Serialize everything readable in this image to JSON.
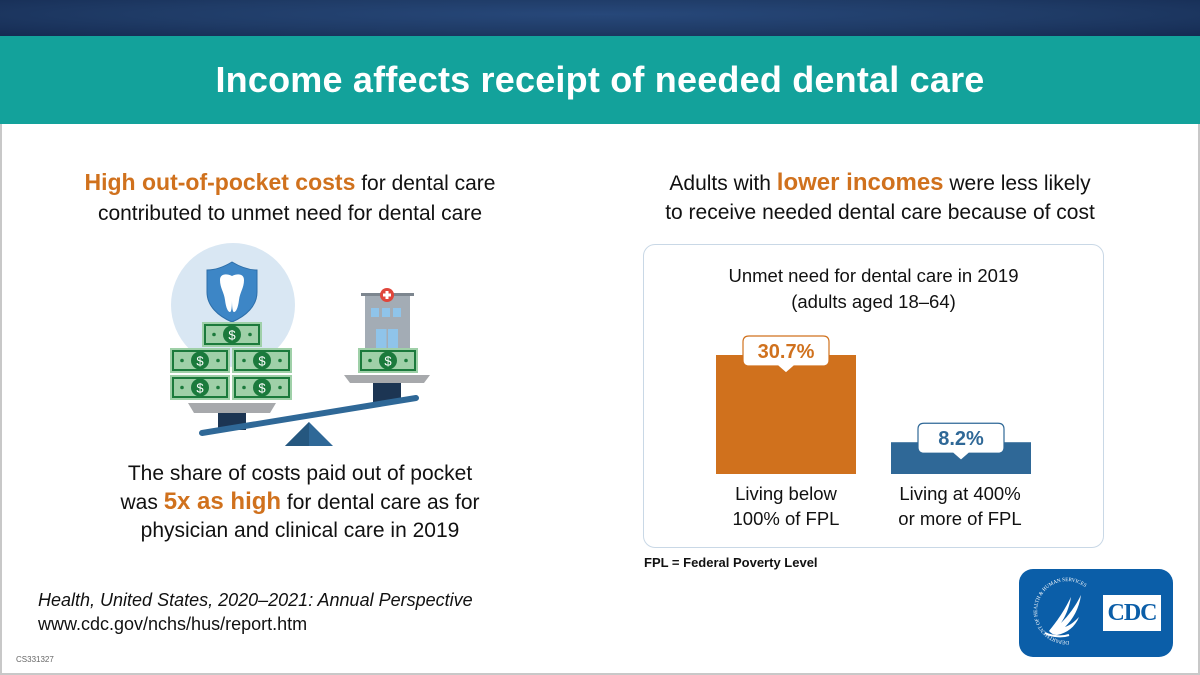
{
  "header": {
    "title": "Income affects receipt of needed dental care"
  },
  "left": {
    "heading_highlight": "High out-of-pocket costs",
    "heading_rest_line1": " for dental care",
    "heading_line2": "contributed to unmet need for dental care",
    "illustration": {
      "left_pan_icons": [
        "tooth-shield-icon",
        "money-bill-icon",
        "money-bill-icon",
        "money-bill-icon",
        "money-bill-icon",
        "money-bill-icon"
      ],
      "right_pan_icons": [
        "hospital-building-icon",
        "money-bill-icon"
      ],
      "bill_symbol": "$"
    },
    "body_line1": "The share of costs paid out of pocket",
    "body_line2_prefix": "was ",
    "body_highlight": "5x as high",
    "body_line2_suffix": " for dental care as for",
    "body_line3": "physician and clinical care in 2019"
  },
  "right": {
    "heading_prefix": "Adults with ",
    "heading_highlight": "lower incomes",
    "heading_suffix": " were less likely",
    "heading_line2": "to receive needed dental care because of cost"
  },
  "source": {
    "title": "Health, United States, 2020–2021: Annual Perspective",
    "url": "www.cdc.gov/nchs/hus/report.htm",
    "code": "CS331327"
  },
  "footnote": "FPL = Federal Poverty Level",
  "logo": {
    "seal_text": "DEPARTMENT OF HEALTH & HUMAN SERVICES · USA",
    "label": "CDC"
  },
  "colors": {
    "accent_orange": "#d0711d",
    "accent_blue": "#2f6897",
    "teal": "#13a29b",
    "navy": "#1f3b66"
  },
  "chart_data": {
    "type": "bar",
    "title": "Unmet need for dental care in 2019",
    "subtitle": "(adults aged 18–64)",
    "categories": [
      "Living below 100% of FPL",
      "Living at 400% or more of FPL"
    ],
    "category_lines": [
      [
        "Living below",
        "100% of FPL"
      ],
      [
        "Living at 400%",
        "or more of FPL"
      ]
    ],
    "values": [
      30.7,
      8.2
    ],
    "value_labels": [
      "30.7%",
      "8.2%"
    ],
    "bar_colors": [
      "#d0711d",
      "#2f6897"
    ],
    "unit": "%",
    "xlabel": "",
    "ylabel": "",
    "ylim": [
      0,
      30.7
    ],
    "grid": false,
    "legend": "none"
  }
}
